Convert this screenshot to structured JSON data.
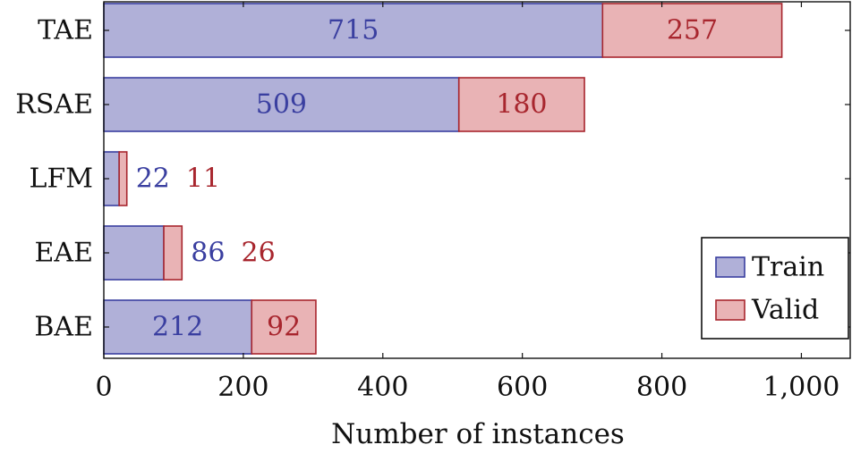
{
  "chart_data": {
    "type": "bar",
    "orientation": "horizontal",
    "stacked": true,
    "categories": [
      "TAE",
      "RSAE",
      "LFM",
      "EAE",
      "BAE"
    ],
    "series": [
      {
        "name": "Train",
        "values": [
          715,
          509,
          22,
          86,
          212
        ],
        "color": "#3a3fa0",
        "fill": "#b0b0d8"
      },
      {
        "name": "Valid",
        "values": [
          257,
          180,
          11,
          26,
          92
        ],
        "color": "#a8262e",
        "fill": "#e9b3b5"
      }
    ],
    "xlabel": "Number of instances",
    "ylabel": "",
    "xlim": [
      0,
      1070
    ],
    "xticks": [
      0,
      200,
      400,
      600,
      800,
      1000
    ],
    "xtick_labels": [
      "0",
      "200",
      "400",
      "600",
      "800",
      "1,000"
    ],
    "grid": false,
    "legend_position": "bottom-right"
  }
}
